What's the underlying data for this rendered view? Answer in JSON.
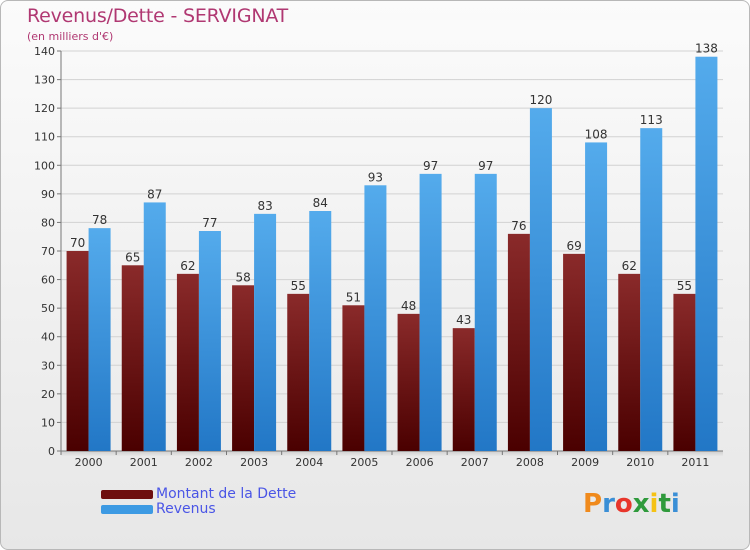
{
  "header": {
    "title": "Revenus/Dette - SERVIGNAT",
    "subtitle": "(en milliers d'€)"
  },
  "logo": {
    "text": "Proxiti",
    "colors": [
      "#f08a1c",
      "#3a8fd6",
      "#e8362b",
      "#2f9a3c",
      "#f5c214",
      "#2f9a3c",
      "#3a8fd6"
    ]
  },
  "colors": {
    "dette": "#6e0f0f",
    "revenus": "#3d9ae3"
  },
  "chart_data": {
    "type": "bar",
    "title": "Revenus/Dette - SERVIGNAT",
    "subtitle": "(en milliers d'€)",
    "categories": [
      "2000",
      "2001",
      "2002",
      "2003",
      "2004",
      "2005",
      "2006",
      "2007",
      "2008",
      "2009",
      "2010",
      "2011"
    ],
    "series": [
      {
        "name": "Montant de la Dette",
        "values": [
          70,
          65,
          62,
          58,
          55,
          51,
          48,
          43,
          76,
          69,
          62,
          55
        ]
      },
      {
        "name": "Revenus",
        "values": [
          78,
          87,
          77,
          83,
          84,
          93,
          97,
          97,
          120,
          108,
          113,
          138
        ]
      }
    ],
    "ylim": [
      0,
      140
    ],
    "yticks": [
      0,
      10,
      20,
      30,
      40,
      50,
      60,
      70,
      80,
      90,
      100,
      110,
      120,
      130,
      140
    ],
    "grid": true,
    "legend": "bottom-left"
  }
}
